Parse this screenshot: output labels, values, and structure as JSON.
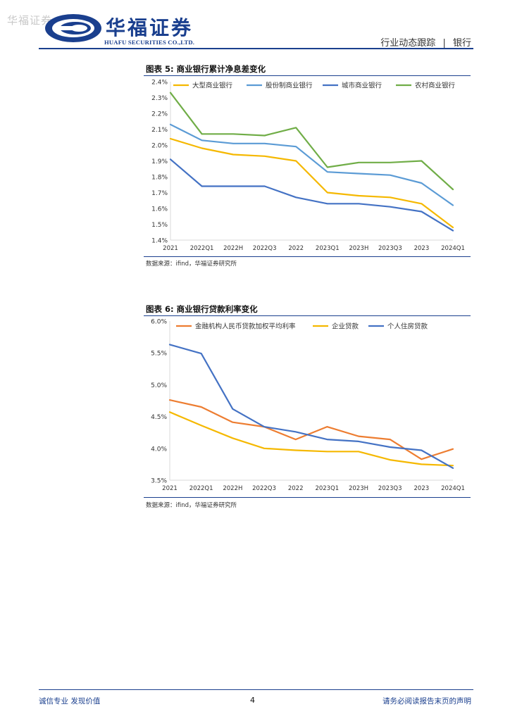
{
  "header": {
    "watermark": "华福证券",
    "logo_cn": "华福证券",
    "logo_en": "HUAFU SECURITIES CO.,LTD.",
    "section": "行业动态跟踪",
    "separator": "|",
    "industry": "银行"
  },
  "figures": [
    {
      "title": "图表 5:  商业银行累计净息差变化",
      "source": "数据来源：ifind，华福证券研究所"
    },
    {
      "title": "图表 6:  商业银行贷款利率变化",
      "source": "数据来源：ifind，华福证券研究所"
    }
  ],
  "footer": {
    "left": "诚信专业  发现价值",
    "page": "4",
    "right": "请务必阅读报告末页的声明"
  },
  "colors": {
    "brand": "#1a3f8e",
    "yellow": "#f5b800",
    "lightblue": "#5b9bd5",
    "blue": "#4472c4",
    "green": "#70ad47",
    "orange": "#ed7d31"
  },
  "chart_data": [
    {
      "type": "line",
      "title": "商业银行累计净息差变化",
      "categories": [
        "2021",
        "2022Q1",
        "2022H",
        "2022Q3",
        "2022",
        "2023Q1",
        "2023H",
        "2023Q3",
        "2023",
        "2024Q1"
      ],
      "yticks": [
        "2.4%",
        "2.3%",
        "2.2%",
        "2.1%",
        "2.0%",
        "1.9%",
        "1.8%",
        "1.7%",
        "1.6%",
        "1.5%",
        "1.4%"
      ],
      "ylim": [
        1.4,
        2.4
      ],
      "series": [
        {
          "name": "大型商业银行",
          "color": "#f5b800",
          "values": [
            2.04,
            1.98,
            1.94,
            1.93,
            1.9,
            1.7,
            1.68,
            1.67,
            1.63,
            1.48
          ]
        },
        {
          "name": "股份制商业银行",
          "color": "#5b9bd5",
          "values": [
            2.13,
            2.03,
            2.01,
            2.01,
            1.99,
            1.83,
            1.82,
            1.81,
            1.76,
            1.62
          ]
        },
        {
          "name": "城市商业银行",
          "color": "#4472c4",
          "values": [
            1.91,
            1.74,
            1.74,
            1.74,
            1.67,
            1.63,
            1.63,
            1.61,
            1.58,
            1.46
          ]
        },
        {
          "name": "农村商业银行",
          "color": "#70ad47",
          "values": [
            2.33,
            2.07,
            2.07,
            2.06,
            2.11,
            1.86,
            1.89,
            1.89,
            1.9,
            1.72
          ]
        }
      ]
    },
    {
      "type": "line",
      "title": "商业银行贷款利率变化",
      "categories": [
        "2021",
        "2022Q1",
        "2022H",
        "2022Q3",
        "2022",
        "2023Q1",
        "2023H",
        "2023Q3",
        "2023",
        "2024Q1"
      ],
      "yticks": [
        "6.0%",
        "5.5%",
        "5.0%",
        "4.5%",
        "4.0%",
        "3.5%"
      ],
      "ylim": [
        3.5,
        6.0
      ],
      "series": [
        {
          "name": "金融机构人民币贷款加权平均利率",
          "color": "#ed7d31",
          "values": [
            4.76,
            4.65,
            4.41,
            4.34,
            4.14,
            4.34,
            4.19,
            4.14,
            3.83,
            3.99
          ]
        },
        {
          "name": "企业贷款",
          "color": "#f5b800",
          "values": [
            4.57,
            4.36,
            4.16,
            4.0,
            3.97,
            3.95,
            3.95,
            3.82,
            3.75,
            3.73
          ]
        },
        {
          "name": "个人住房贷款",
          "color": "#4472c4",
          "values": [
            5.63,
            5.49,
            4.62,
            4.34,
            4.26,
            4.14,
            4.11,
            4.02,
            3.97,
            3.69
          ]
        }
      ]
    }
  ]
}
